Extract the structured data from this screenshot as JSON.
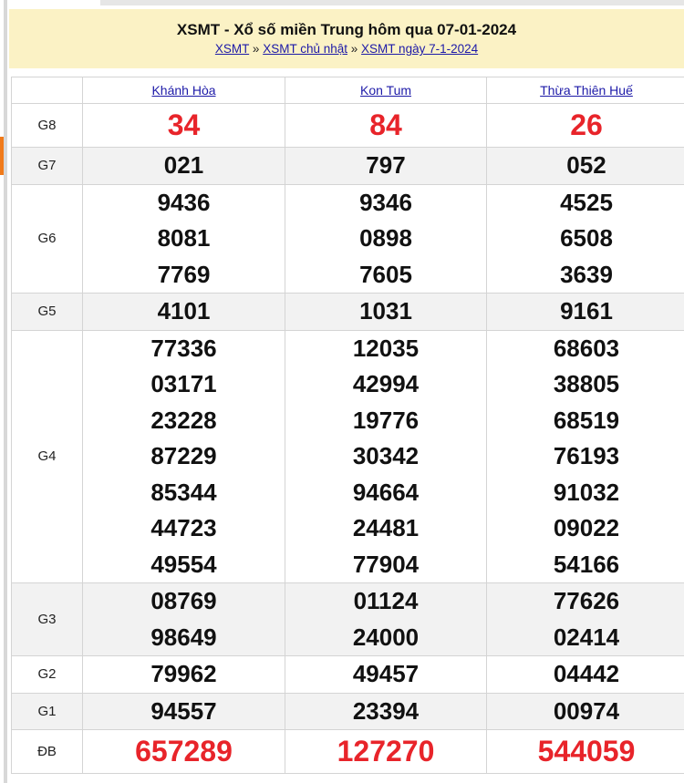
{
  "header": {
    "title": "XSMT - Xổ số miền Trung hôm qua 07-01-2024",
    "breadcrumbs": [
      "XSMT",
      "XSMT chủ nhật",
      "XSMT ngày 7-1-2024"
    ],
    "separator": "»"
  },
  "provinces": [
    "Khánh Hòa",
    "Kon Tum",
    "Thừa Thiên Huế"
  ],
  "rows": [
    {
      "label": "G8",
      "values": [
        [
          "34"
        ],
        [
          "84"
        ],
        [
          "26"
        ]
      ],
      "highlight": true
    },
    {
      "label": "G7",
      "values": [
        [
          "021"
        ],
        [
          "797"
        ],
        [
          "052"
        ]
      ]
    },
    {
      "label": "G6",
      "values": [
        [
          "9436",
          "8081",
          "7769"
        ],
        [
          "9346",
          "0898",
          "7605"
        ],
        [
          "4525",
          "6508",
          "3639"
        ]
      ]
    },
    {
      "label": "G5",
      "values": [
        [
          "4101"
        ],
        [
          "1031"
        ],
        [
          "9161"
        ]
      ]
    },
    {
      "label": "G4",
      "values": [
        [
          "77336",
          "03171",
          "23228",
          "87229",
          "85344",
          "44723",
          "49554"
        ],
        [
          "12035",
          "42994",
          "19776",
          "30342",
          "94664",
          "24481",
          "77904"
        ],
        [
          "68603",
          "38805",
          "68519",
          "76193",
          "91032",
          "09022",
          "54166"
        ]
      ]
    },
    {
      "label": "G3",
      "values": [
        [
          "08769",
          "98649"
        ],
        [
          "01124",
          "24000"
        ],
        [
          "77626",
          "02414"
        ]
      ]
    },
    {
      "label": "G2",
      "values": [
        [
          "79962"
        ],
        [
          "49457"
        ],
        [
          "04442"
        ]
      ]
    },
    {
      "label": "G1",
      "values": [
        [
          "94557"
        ],
        [
          "23394"
        ],
        [
          "00974"
        ]
      ]
    },
    {
      "label": "ĐB",
      "values": [
        [
          "657289"
        ],
        [
          "127270"
        ],
        [
          "544059"
        ]
      ],
      "highlight": true
    }
  ],
  "colors": {
    "highlight": "#e8242a",
    "header_bg": "#fbf2c5",
    "link": "#1d1aa8",
    "alt_row": "#f2f2f2"
  }
}
